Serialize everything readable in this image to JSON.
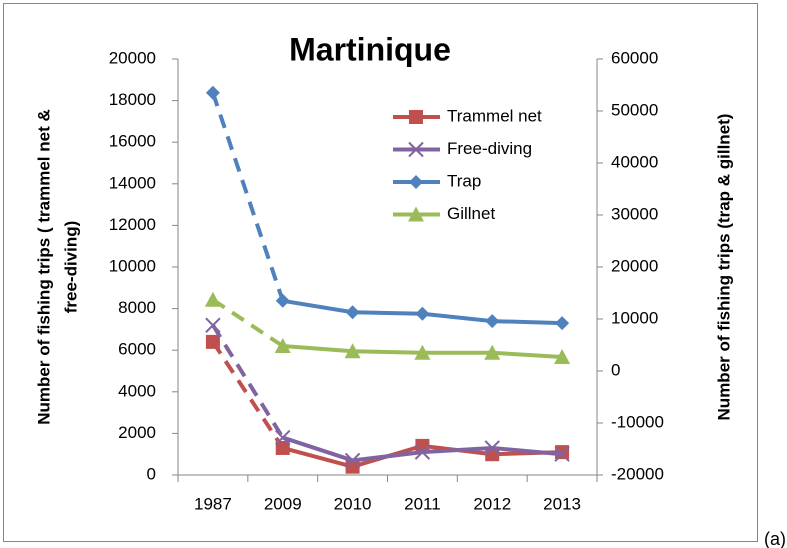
{
  "chart_data": {
    "type": "line",
    "title": "Martinique",
    "categories": [
      "1987",
      "2009",
      "2010",
      "2011",
      "2012",
      "2013"
    ],
    "ylabel": [
      "Number of fishing trips ( trammel net &",
      "free-diving)"
    ],
    "y2label": "Number of fishing trips (trap & gillnet)",
    "ylim": [
      0,
      20000
    ],
    "yticks": [
      0,
      2000,
      4000,
      6000,
      8000,
      10000,
      12000,
      14000,
      16000,
      18000,
      20000
    ],
    "y2lim": [
      -20000,
      60000
    ],
    "y2ticks": [
      -20000,
      -10000,
      0,
      10000,
      20000,
      30000,
      40000,
      50000,
      60000
    ],
    "legend": "upper right",
    "series": [
      {
        "name": "Trammel net",
        "color": "#c0504d",
        "marker": "square",
        "values": [
          6400,
          1300,
          400,
          1400,
          1000,
          1100
        ]
      },
      {
        "name": "Free-diving",
        "color": "#8064a2",
        "marker": "x",
        "values": [
          7200,
          1800,
          700,
          1100,
          1300,
          1000
        ]
      },
      {
        "name": "Trap",
        "color": "#4f81bd",
        "marker": "diamond",
        "axis": "y2",
        "values": [
          53500,
          13500,
          11300,
          11000,
          9600,
          9200
        ]
      },
      {
        "name": "Gillnet",
        "color": "#9bbb59",
        "marker": "triangle",
        "axis": "y2",
        "values": [
          13700,
          4800,
          3800,
          3500,
          3500,
          2700
        ]
      }
    ],
    "note": "(a)"
  }
}
